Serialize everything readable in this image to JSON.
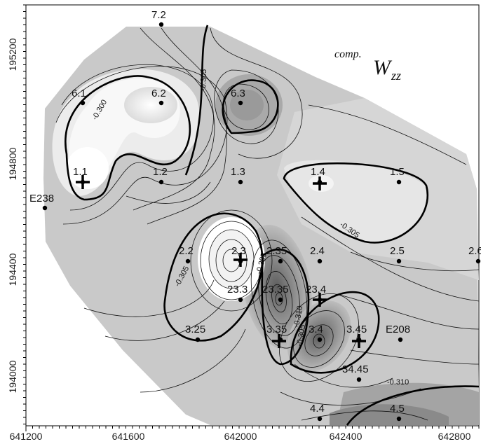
{
  "title": {
    "sup": "comp.",
    "main": "W",
    "sub": "zz"
  },
  "x_axis": {
    "ticks": [
      "641200",
      "641600",
      "642000",
      "642400",
      "642800"
    ]
  },
  "y_axis": {
    "ticks": [
      "195200",
      "194800",
      "194400",
      "194000"
    ]
  },
  "stations": [
    {
      "label": "7.2"
    },
    {
      "label": "6.1"
    },
    {
      "label": "6.2"
    },
    {
      "label": "6.3"
    },
    {
      "label": "1.1"
    },
    {
      "label": "1.2"
    },
    {
      "label": "1.3"
    },
    {
      "label": "1.4"
    },
    {
      "label": "1.5"
    },
    {
      "label": "E238"
    },
    {
      "label": "2.2"
    },
    {
      "label": "2.3"
    },
    {
      "label": "2.35"
    },
    {
      "label": "2.4"
    },
    {
      "label": "2.5"
    },
    {
      "label": "2.6"
    },
    {
      "label": "23.3"
    },
    {
      "label": "23.35"
    },
    {
      "label": "23.4"
    },
    {
      "label": "3.25"
    },
    {
      "label": "3.35"
    },
    {
      "label": "3.4"
    },
    {
      "label": "3.45"
    },
    {
      "label": "E208"
    },
    {
      "label": "34.45"
    },
    {
      "label": "4.4"
    },
    {
      "label": "4.5"
    }
  ],
  "contour_labels": [
    "-0.300",
    "-0.305",
    "-0.305",
    "-0.305",
    "-0.305",
    "-0.305",
    "-0.310",
    "-0.310"
  ],
  "colors": {
    "fill_light": "#f6f6f6",
    "fill_mid": "#c8c8c8",
    "fill_dark": "#8a8a8a",
    "line": "#111111"
  }
}
